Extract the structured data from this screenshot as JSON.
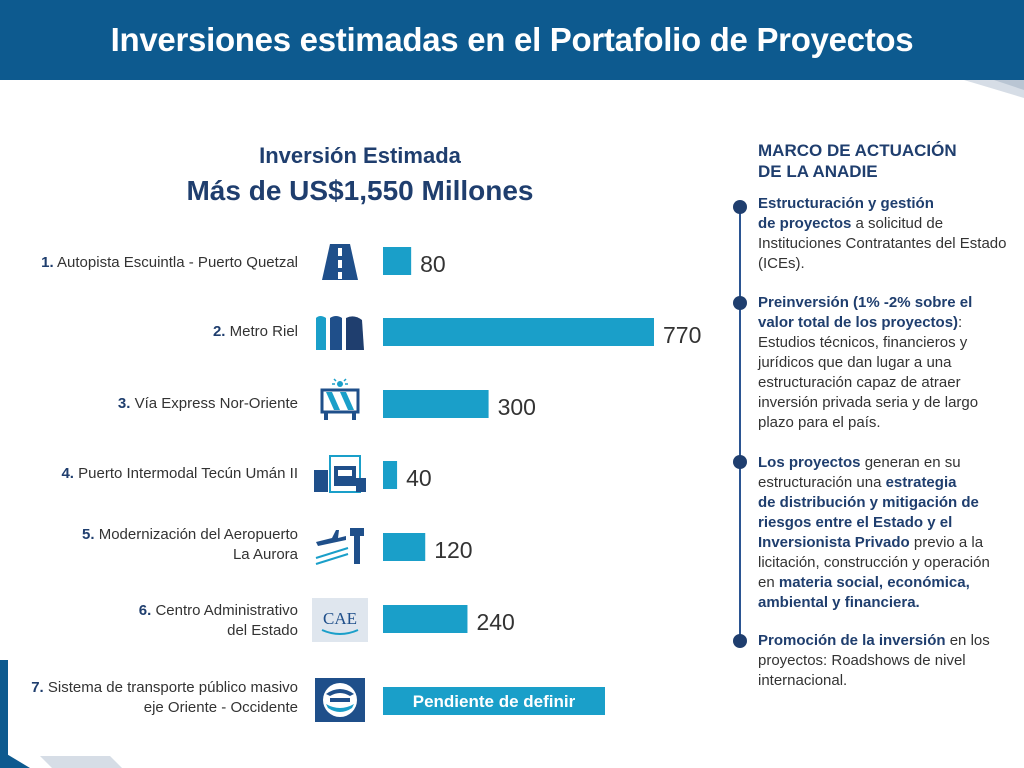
{
  "header": {
    "title": "Inversiones estimadas en el Portafolio de Proyectos"
  },
  "chart_data": {
    "type": "bar",
    "title": "Inversión Estimada",
    "subtitle": "Más de US$1,550 Millones",
    "categories": [
      "Autopista Escuintla - Puerto Quetzal",
      "Metro Riel",
      "Vía Express Nor-Oriente",
      "Puerto Intermodal Tecún Umán II",
      "Modernización del Aeropuerto La Aurora",
      "Centro Administrativo del Estado",
      "Sistema de transporte público masivo eje Oriente - Occidente"
    ],
    "values": [
      80,
      770,
      300,
      40,
      120,
      240,
      null
    ],
    "bar_color": "#1a9fc9",
    "pending_label": "Pendiente de definir",
    "xlim": [
      0,
      770
    ]
  },
  "projects": [
    {
      "num": "1.",
      "line1": "Autopista Escuintla - Puerto Quetzal",
      "line2": "",
      "icon": "highway-icon"
    },
    {
      "num": "2.",
      "line1": "Metro Riel",
      "line2": "",
      "icon": "train-icon"
    },
    {
      "num": "3.",
      "line1": "Vía Express Nor-Oriente",
      "line2": "",
      "icon": "road-barrier-icon"
    },
    {
      "num": "4.",
      "line1": "Puerto Intermodal Tecún Umán II",
      "line2": "",
      "icon": "truck-port-icon"
    },
    {
      "num": "5.",
      "line1": "Modernización del Aeropuerto",
      "line2": "La Aurora",
      "icon": "airport-icon"
    },
    {
      "num": "6.",
      "line1": "Centro Administrativo",
      "line2": "del Estado",
      "icon": "cae-logo-icon"
    },
    {
      "num": "7.",
      "line1": "Sistema de transporte público masivo",
      "line2": "eje Oriente - Occidente",
      "icon": "transport-logo-icon"
    }
  ],
  "icons": {
    "cae_text": "CAE"
  },
  "framework": {
    "title_line1": "MARCO DE ACTUACIÓN",
    "title_line2": "DE LA ANADIE",
    "items": [
      {
        "runs": [
          {
            "b": true,
            "t": "Estructuración y gestión"
          },
          {
            "br": true
          },
          {
            "b": true,
            "t": "de proyectos"
          },
          {
            "b": false,
            "t": " a solicitud de Instituciones Contratantes del Estado (ICEs)."
          }
        ]
      },
      {
        "runs": [
          {
            "b": true,
            "t": "Preinversión"
          },
          {
            "b": false,
            "t": " "
          },
          {
            "b": true,
            "t": "(1% -2% sobre el valor total de los proyectos)"
          },
          {
            "b": false,
            "t": ": Estudios técnicos, financieros y jurídicos que dan lugar a una estructuración capaz de atraer inversión privada seria y de largo plazo para el país."
          }
        ]
      },
      {
        "runs": [
          {
            "b": true,
            "t": "Los proyectos"
          },
          {
            "b": false,
            "t": " generan en su estructuración una "
          },
          {
            "b": true,
            "t": "estrategia"
          },
          {
            "br": true
          },
          {
            "b": true,
            "t": "de distribución y mitigación de riesgos entre el Estado y el Inversionista Privado"
          },
          {
            "b": false,
            "t": " previo a la licitación, construcción y operación en "
          },
          {
            "b": true,
            "t": "materia social, económica, ambiental y financiera."
          }
        ]
      },
      {
        "runs": [
          {
            "b": true,
            "t": "Promoción de la inversión"
          },
          {
            "b": false,
            "t": " en los proyectos: Roadshows de nivel internacional."
          }
        ]
      }
    ]
  },
  "colors": {
    "header": "#0d5a8f",
    "navy": "#1f3e6e",
    "bar": "#1a9fc9"
  }
}
